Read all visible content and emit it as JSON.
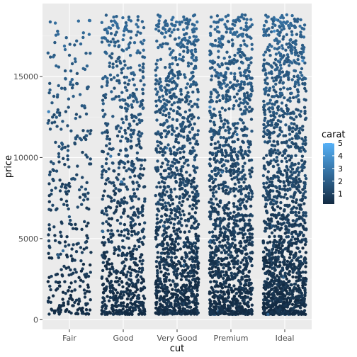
{
  "chart_data": {
    "type": "scatter",
    "title": "",
    "xlabel": "cut",
    "ylabel": "price",
    "categories": [
      "Fair",
      "Good",
      "Very Good",
      "Premium",
      "Ideal"
    ],
    "ylim": [
      -600,
      19500
    ],
    "y_ticks": [
      0,
      5000,
      10000,
      15000
    ],
    "y_tick_labels": [
      "0",
      "5000",
      "10000",
      "15000"
    ],
    "grid": true,
    "legend_position": "right",
    "color_scale": {
      "title": "carat",
      "min": 0.2,
      "max": 5,
      "low_color": "#132B43",
      "high_color": "#56B1F7",
      "ticks": [
        1,
        2,
        3,
        4,
        5
      ],
      "tick_labels": [
        "1",
        "2",
        "3",
        "4",
        "5"
      ]
    },
    "series": [
      {
        "category": "Fair",
        "price_range": [
          337,
          18574
        ],
        "relative_density": 0.25
      },
      {
        "category": "Good",
        "price_range": [
          327,
          18788
        ],
        "relative_density": 0.55
      },
      {
        "category": "Very Good",
        "price_range": [
          336,
          18818
        ],
        "relative_density": 0.85
      },
      {
        "category": "Premium",
        "price_range": [
          326,
          18823
        ],
        "relative_density": 0.9
      },
      {
        "category": "Ideal",
        "price_range": [
          326,
          18806
        ],
        "relative_density": 1.0
      }
    ]
  }
}
